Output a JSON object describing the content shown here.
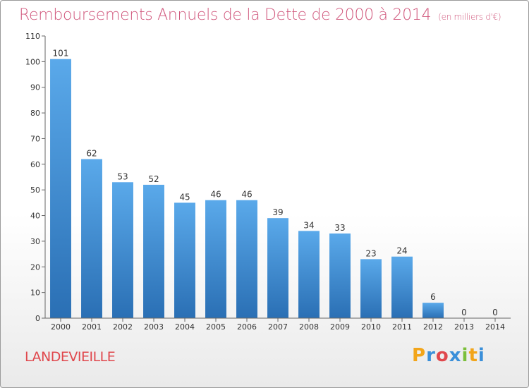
{
  "chart_data": {
    "type": "bar",
    "title": "Remboursements Annuels de la Dette de 2000 à 2014",
    "subtitle": "(en milliers d'€)",
    "xlabel": "",
    "ylabel": "",
    "categories": [
      "2000",
      "2001",
      "2002",
      "2003",
      "2004",
      "2005",
      "2006",
      "2007",
      "2008",
      "2009",
      "2010",
      "2011",
      "2012",
      "2013",
      "2014"
    ],
    "values": [
      101,
      62,
      53,
      52,
      45,
      46,
      46,
      39,
      34,
      33,
      23,
      24,
      6,
      0,
      0
    ],
    "ylim": [
      0,
      110
    ],
    "yticks": [
      0,
      10,
      20,
      30,
      40,
      50,
      60,
      70,
      80,
      90,
      100,
      110
    ],
    "grid": false,
    "bar_color": "#3f8fd6",
    "bar_color_dark": "#2b70b3"
  },
  "footer": {
    "commune": "LANDEVIEILLE",
    "logo_letters": [
      "P",
      "r",
      "o",
      "x",
      "i",
      "t",
      "i"
    ],
    "logo_colors": [
      "#f2a51a",
      "#3a8fd9",
      "#e0474c",
      "#3a8fd9",
      "#7bbf3a",
      "#f2a51a",
      "#3a8fd9"
    ]
  }
}
